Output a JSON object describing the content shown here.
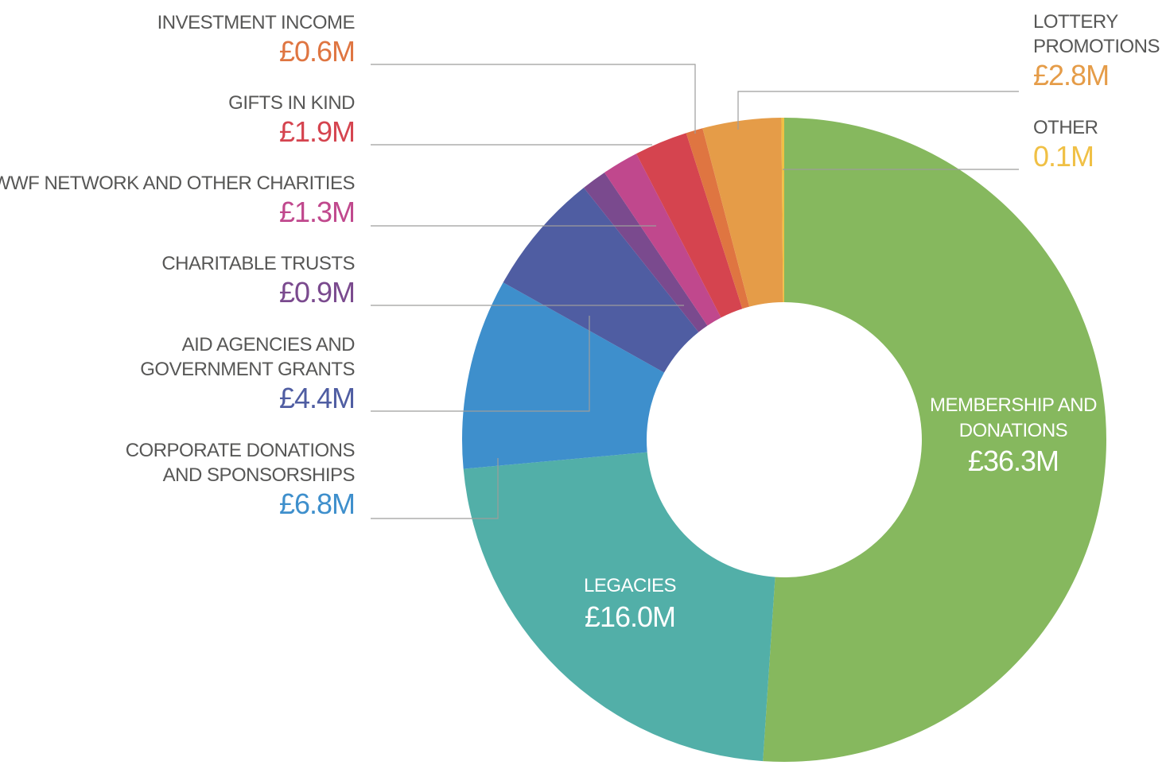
{
  "chart_data": {
    "type": "pie",
    "donut": true,
    "slices": [
      {
        "name": "MEMBERSHIP AND DONATIONS",
        "name_lines": [
          "MEMBERSHIP AND",
          "DONATIONS"
        ],
        "display": "£36.3M",
        "value": 36.3,
        "color": "#86b85e"
      },
      {
        "name": "LEGACIES",
        "name_lines": [
          "LEGACIES"
        ],
        "display": "£16.0M",
        "value": 16.0,
        "color": "#52afa8"
      },
      {
        "name": "CORPORATE DONATIONS AND SPONSORSHIPS",
        "name_lines": [
          "CORPORATE DONATIONS",
          "AND SPONSORSHIPS"
        ],
        "display": "£6.8M",
        "value": 6.8,
        "color": "#3e8fcc"
      },
      {
        "name": "AID AGENCIES AND GOVERNMENT GRANTS",
        "name_lines": [
          "AID AGENCIES AND",
          "GOVERNMENT GRANTS"
        ],
        "display": "£4.4M",
        "value": 4.4,
        "color": "#4f5da2"
      },
      {
        "name": "CHARITABLE TRUSTS",
        "name_lines": [
          "CHARITABLE TRUSTS"
        ],
        "display": "£0.9M",
        "value": 0.9,
        "color": "#7a4a8e"
      },
      {
        "name": "WWF NETWORK AND OTHER CHARITIES",
        "name_lines": [
          "WWF NETWORK AND OTHER CHARITIES"
        ],
        "display": "£1.3M",
        "value": 1.3,
        "color": "#c0488d"
      },
      {
        "name": "GIFTS IN KIND",
        "name_lines": [
          "GIFTS IN KIND"
        ],
        "display": "£1.9M",
        "value": 1.9,
        "color": "#d5444f"
      },
      {
        "name": "INVESTMENT INCOME",
        "name_lines": [
          "INVESTMENT INCOME"
        ],
        "display": "£0.6M",
        "value": 0.6,
        "color": "#df7541"
      },
      {
        "name": "LOTTERY PROMOTIONS",
        "name_lines": [
          "LOTTERY",
          "PROMOTIONS"
        ],
        "display": "£2.8M",
        "value": 2.8,
        "color": "#e59c48"
      },
      {
        "name": "OTHER",
        "name_lines": [
          "OTHER"
        ],
        "display": "0.1M",
        "value": 0.1,
        "color": "#f0c045"
      }
    ]
  }
}
